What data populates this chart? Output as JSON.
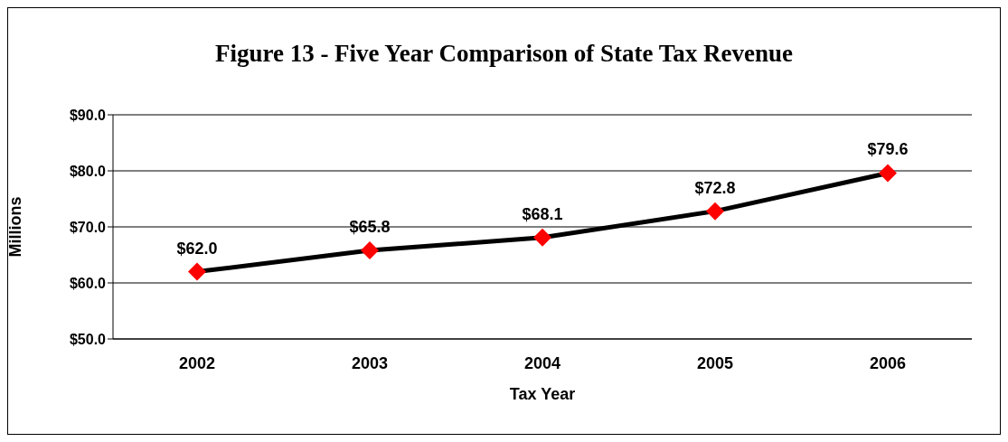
{
  "chart_data": {
    "type": "line",
    "title": "Figure 13 - Five  Year Comparison of State Tax Revenue",
    "xlabel": "Tax Year",
    "ylabel": "Millions",
    "categories": [
      "2002",
      "2003",
      "2004",
      "2005",
      "2006"
    ],
    "series": [
      {
        "color": "#000000",
        "values": [
          62.0,
          65.8,
          68.1,
          72.8,
          79.6
        ],
        "value_labels": [
          "$62.0",
          "$65.8",
          "$68.1",
          "$72.8",
          "$79.6"
        ],
        "colors": [
          "#ff0000",
          "#ff0000",
          "#ff0000",
          "#ff0000",
          "#ff0000"
        ]
      }
    ],
    "ylim": [
      50,
      90
    ],
    "yticks": [
      {
        "value": 50,
        "label": "$50.0"
      },
      {
        "value": 60,
        "label": "$60.0"
      },
      {
        "value": 70,
        "label": "$70.0"
      },
      {
        "value": 80,
        "label": "$80.0"
      },
      {
        "value": 90,
        "label": "$90.0"
      }
    ],
    "grid": "y",
    "marker": "diamond",
    "line_style": "solid"
  }
}
